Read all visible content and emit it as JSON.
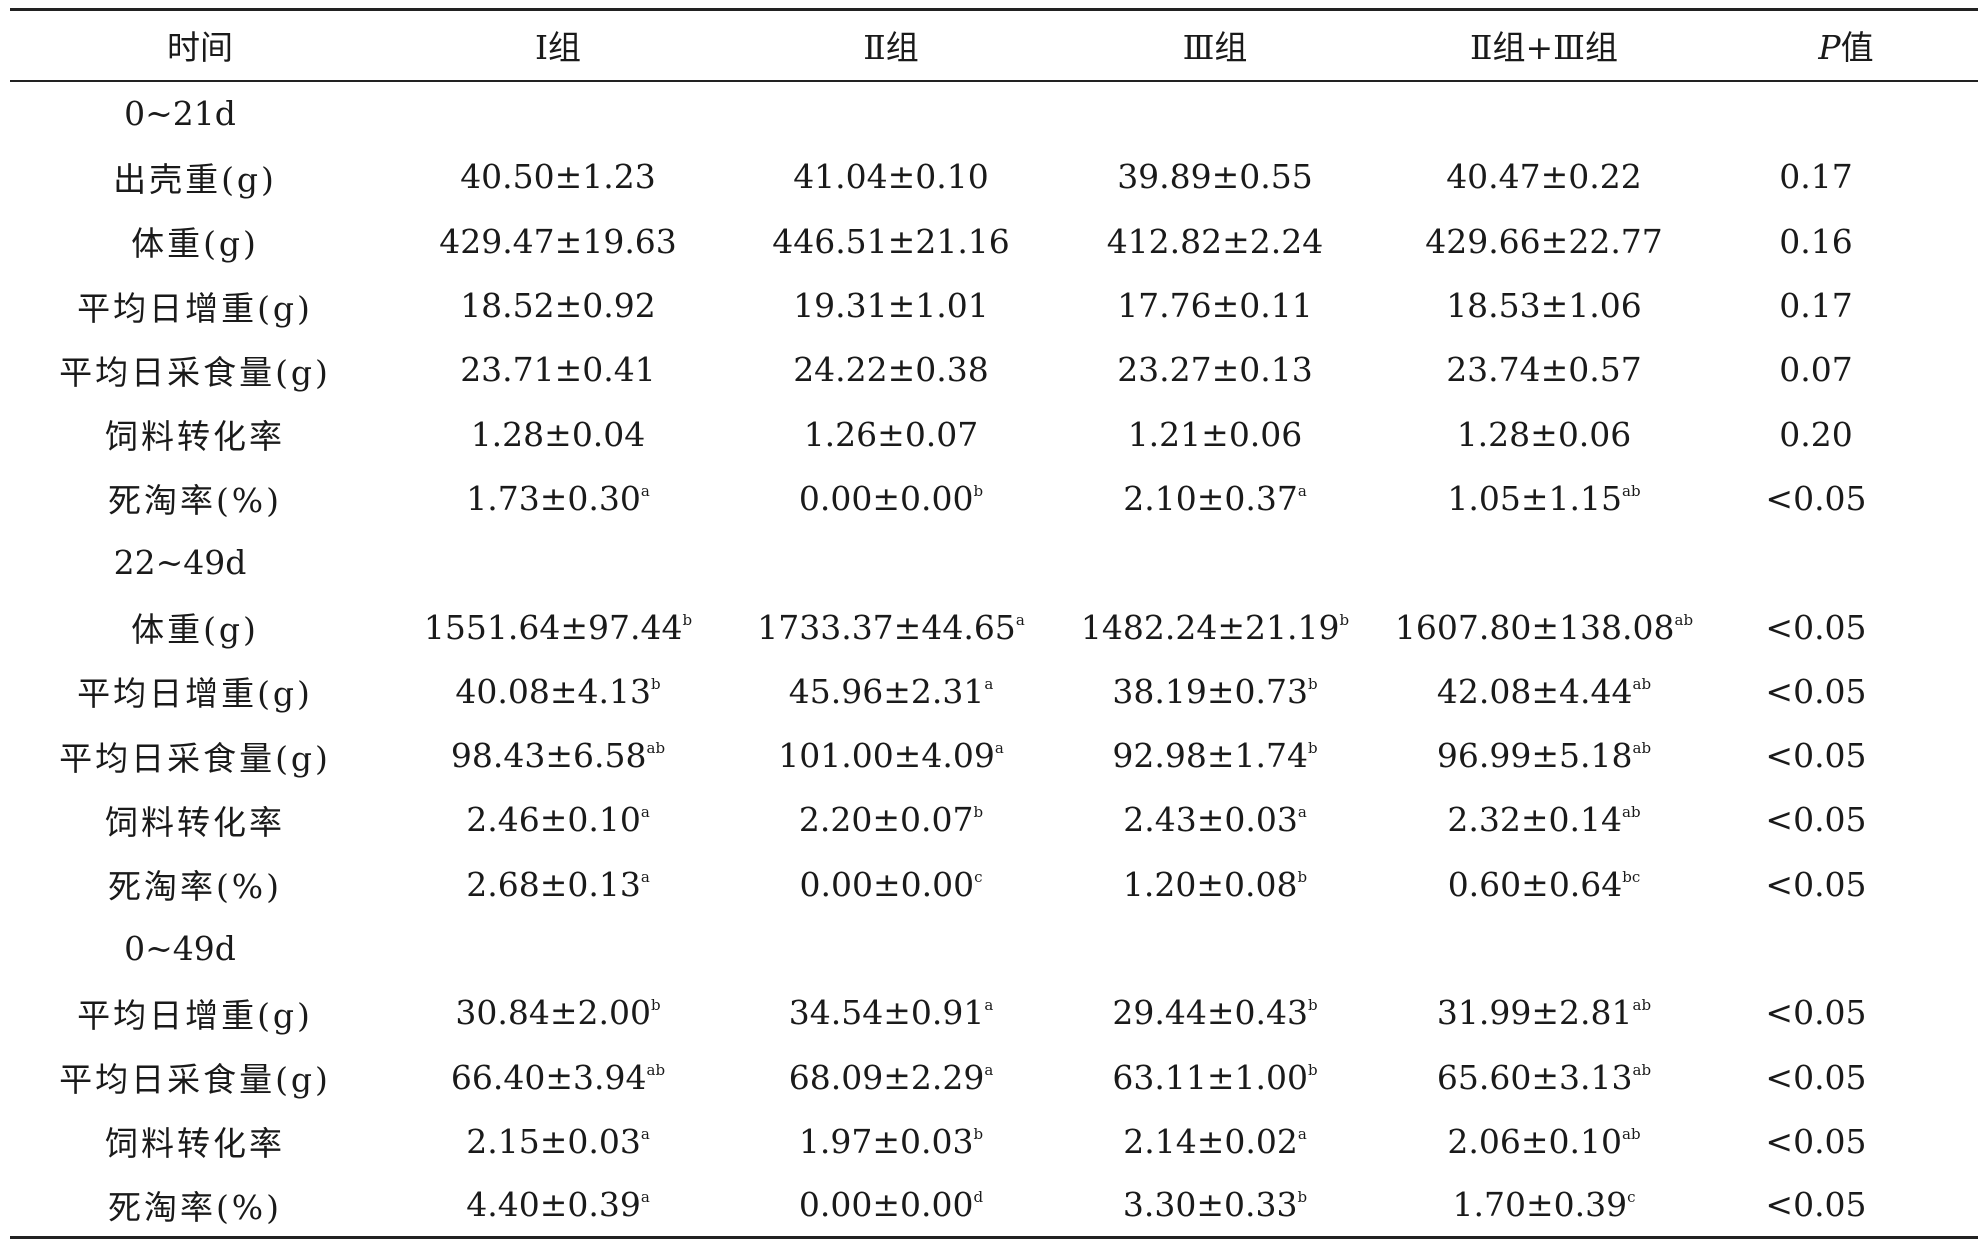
{
  "table": {
    "headers": [
      "时间",
      "Ⅰ组",
      "Ⅱ组",
      "Ⅲ组",
      "Ⅱ组+Ⅲ组",
      "值"
    ],
    "p_letter": "P",
    "sections": [
      {
        "period": "0~21d",
        "rows": [
          {
            "label": "出壳重(g)",
            "cells": [
              [
                "40.50±1.23",
                ""
              ],
              [
                "41.04±0.10",
                ""
              ],
              [
                "39.89±0.55",
                ""
              ],
              [
                "40.47±0.22",
                ""
              ]
            ],
            "p": "0.17"
          },
          {
            "label": "体重(g)",
            "cells": [
              [
                "429.47±19.63",
                ""
              ],
              [
                "446.51±21.16",
                ""
              ],
              [
                "412.82±2.24",
                ""
              ],
              [
                "429.66±22.77",
                ""
              ]
            ],
            "p": "0.16"
          },
          {
            "label": "平均日增重(g)",
            "cells": [
              [
                "18.52±0.92",
                ""
              ],
              [
                "19.31±1.01",
                ""
              ],
              [
                "17.76±0.11",
                ""
              ],
              [
                "18.53±1.06",
                ""
              ]
            ],
            "p": "0.17"
          },
          {
            "label": "平均日采食量(g)",
            "cells": [
              [
                "23.71±0.41",
                ""
              ],
              [
                "24.22±0.38",
                ""
              ],
              [
                "23.27±0.13",
                ""
              ],
              [
                "23.74±0.57",
                ""
              ]
            ],
            "p": "0.07"
          },
          {
            "label": "饲料转化率",
            "cells": [
              [
                "1.28±0.04",
                ""
              ],
              [
                "1.26±0.07",
                ""
              ],
              [
                "1.21±0.06",
                ""
              ],
              [
                "1.28±0.06",
                ""
              ]
            ],
            "p": "0.20"
          },
          {
            "label": "死淘率(%)",
            "cells": [
              [
                "1.73±0.30",
                "a"
              ],
              [
                "0.00±0.00",
                "b"
              ],
              [
                "2.10±0.37",
                "a"
              ],
              [
                "1.05±1.15",
                "ab"
              ]
            ],
            "p": "<0.05"
          }
        ]
      },
      {
        "period": "22~49d",
        "rows": [
          {
            "label": "体重(g)",
            "cells": [
              [
                "1551.64±97.44",
                "b"
              ],
              [
                "1733.37±44.65",
                "a"
              ],
              [
                "1482.24±21.19",
                "b"
              ],
              [
                "1607.80±138.08",
                "ab"
              ]
            ],
            "p": "<0.05"
          },
          {
            "label": "平均日增重(g)",
            "cells": [
              [
                "40.08±4.13",
                "b"
              ],
              [
                "45.96±2.31",
                "a"
              ],
              [
                "38.19±0.73",
                "b"
              ],
              [
                "42.08±4.44",
                "ab"
              ]
            ],
            "p": "<0.05"
          },
          {
            "label": "平均日采食量(g)",
            "cells": [
              [
                "98.43±6.58",
                "ab"
              ],
              [
                "101.00±4.09",
                "a"
              ],
              [
                "92.98±1.74",
                "b"
              ],
              [
                "96.99±5.18",
                "ab"
              ]
            ],
            "p": "<0.05"
          },
          {
            "label": "饲料转化率",
            "cells": [
              [
                "2.46±0.10",
                "a"
              ],
              [
                "2.20±0.07",
                "b"
              ],
              [
                "2.43±0.03",
                "a"
              ],
              [
                "2.32±0.14",
                "ab"
              ]
            ],
            "p": "<0.05"
          },
          {
            "label": "死淘率(%)",
            "cells": [
              [
                "2.68±0.13",
                "a"
              ],
              [
                "0.00±0.00",
                "c"
              ],
              [
                "1.20±0.08",
                "b"
              ],
              [
                "0.60±0.64",
                "bc"
              ]
            ],
            "p": "<0.05"
          }
        ]
      },
      {
        "period": "0~49d",
        "rows": [
          {
            "label": "平均日增重(g)",
            "cells": [
              [
                "30.84±2.00",
                "b"
              ],
              [
                "34.54±0.91",
                "a"
              ],
              [
                "29.44±0.43",
                "b"
              ],
              [
                "31.99±2.81",
                "ab"
              ]
            ],
            "p": "<0.05"
          },
          {
            "label": "平均日采食量(g)",
            "cells": [
              [
                "66.40±3.94",
                "ab"
              ],
              [
                "68.09±2.29",
                "a"
              ],
              [
                "63.11±1.00",
                "b"
              ],
              [
                "65.60±3.13",
                "ab"
              ]
            ],
            "p": "<0.05"
          },
          {
            "label": "饲料转化率",
            "cells": [
              [
                "2.15±0.03",
                "a"
              ],
              [
                "1.97±0.03",
                "b"
              ],
              [
                "2.14±0.02",
                "a"
              ],
              [
                "2.06±0.10",
                "ab"
              ]
            ],
            "p": "<0.05"
          },
          {
            "label": "死淘率(%)",
            "cells": [
              [
                "4.40±0.39",
                "a"
              ],
              [
                "0.00±0.00",
                "d"
              ],
              [
                "3.30±0.33",
                "b"
              ],
              [
                "1.70±0.39",
                "c"
              ]
            ],
            "p": "<0.05"
          }
        ]
      }
    ]
  }
}
